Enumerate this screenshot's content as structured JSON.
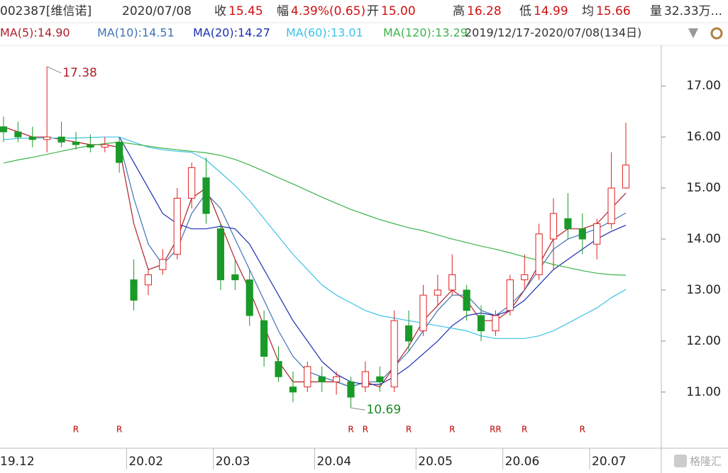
{
  "header": {
    "code": "002387[维信诺]",
    "date": "2020/07/08",
    "fields": [
      {
        "label": "收",
        "value": "15.45"
      },
      {
        "label": "幅",
        "value": "4.39%(0.65)"
      },
      {
        "label": "开",
        "value": "15.00"
      },
      {
        "label": "高",
        "value": "16.28"
      },
      {
        "label": "低",
        "value": "14.99"
      },
      {
        "label": "均",
        "value": "15.66"
      },
      {
        "label": "量",
        "value": "32.33万..."
      }
    ],
    "range": "2019/12/17-2020/07/08(134日)"
  },
  "watermark": "格隆汇",
  "chart_data": {
    "type": "candlestick",
    "categories": [
      "19.12",
      null,
      null,
      null,
      null,
      null,
      null,
      null,
      null,
      "20.02",
      null,
      null,
      null,
      null,
      null,
      "20.03",
      null,
      null,
      null,
      null,
      null,
      null,
      "20.04",
      null,
      null,
      null,
      null,
      null,
      null,
      "20.05",
      null,
      null,
      null,
      null,
      null,
      "20.06",
      null,
      null,
      null,
      null,
      null,
      "20.07",
      null,
      null
    ],
    "open": [
      16.2,
      16.1,
      16.0,
      15.95,
      16.0,
      15.9,
      15.85,
      15.8,
      15.9,
      13.2,
      13.1,
      13.4,
      13.7,
      14.8,
      15.2,
      14.2,
      13.3,
      13.2,
      12.4,
      11.6,
      11.1,
      11.1,
      11.3,
      11.2,
      11.2,
      11.1,
      11.3,
      11.1,
      12.3,
      12.2,
      12.9,
      13.0,
      13.0,
      12.5,
      12.2,
      12.6,
      13.2,
      13.3,
      14.0,
      14.4,
      14.2,
      13.9,
      14.3,
      15.0
    ],
    "high": [
      16.4,
      16.3,
      16.2,
      17.38,
      16.3,
      16.1,
      16.05,
      16.0,
      16.0,
      13.6,
      13.4,
      13.8,
      15.0,
      15.5,
      15.6,
      14.3,
      13.6,
      13.4,
      12.6,
      11.9,
      11.4,
      11.6,
      11.5,
      11.4,
      11.3,
      11.6,
      11.5,
      12.6,
      12.6,
      13.1,
      13.3,
      13.7,
      13.1,
      12.7,
      12.6,
      13.3,
      13.7,
      14.3,
      14.8,
      14.9,
      14.5,
      14.4,
      15.7,
      16.28
    ],
    "low": [
      15.9,
      15.9,
      15.8,
      15.7,
      15.8,
      15.75,
      15.7,
      15.7,
      15.3,
      12.6,
      12.9,
      13.3,
      13.6,
      14.6,
      14.3,
      13.0,
      13.0,
      12.3,
      11.5,
      11.2,
      10.8,
      11.0,
      11.0,
      10.95,
      10.69,
      11.0,
      11.0,
      11.0,
      11.8,
      12.1,
      12.7,
      12.9,
      12.4,
      12.0,
      12.1,
      12.5,
      13.0,
      13.2,
      13.4,
      14.0,
      13.7,
      13.6,
      14.2,
      14.99
    ],
    "close": [
      16.1,
      16.0,
      15.95,
      16.0,
      15.9,
      15.85,
      15.8,
      15.85,
      15.5,
      12.8,
      13.3,
      13.6,
      14.8,
      15.4,
      14.5,
      13.2,
      13.2,
      12.5,
      11.7,
      11.3,
      11.0,
      11.5,
      11.2,
      11.3,
      10.9,
      11.4,
      11.2,
      12.4,
      12.0,
      12.9,
      13.0,
      13.3,
      12.6,
      12.2,
      12.5,
      13.2,
      13.3,
      14.1,
      14.5,
      14.2,
      14.0,
      14.3,
      15.0,
      15.45
    ],
    "up_color": "#e02020",
    "down_color": "#1a9a28",
    "high_label": "17.38",
    "low_label": "10.69",
    "markers": [
      null,
      null,
      null,
      null,
      null,
      "R",
      null,
      null,
      "R",
      null,
      null,
      null,
      null,
      null,
      null,
      null,
      null,
      null,
      null,
      null,
      null,
      null,
      null,
      null,
      "R",
      "R",
      null,
      null,
      "R",
      null,
      null,
      "R",
      null,
      null,
      "RR",
      null,
      "R",
      null,
      null,
      null,
      "R",
      null,
      null,
      null
    ],
    "series": [
      {
        "name": "MA(5):14.90",
        "color": "#b0202a",
        "values": [
          16.2,
          16.1,
          16.0,
          16.0,
          15.95,
          15.9,
          15.85,
          15.85,
          15.8,
          14.3,
          13.4,
          13.5,
          14.0,
          14.8,
          15.0,
          14.3,
          13.6,
          13.0,
          12.3,
          11.6,
          11.2,
          11.2,
          11.2,
          11.2,
          11.1,
          11.2,
          11.1,
          11.5,
          11.9,
          12.4,
          12.7,
          13.0,
          12.8,
          12.4,
          12.4,
          12.6,
          13.0,
          13.5,
          14.0,
          14.2,
          14.2,
          14.3,
          14.6,
          14.9
        ]
      },
      {
        "name": "MA(10):14.51",
        "color": "#3f74b3",
        "values": [
          null,
          null,
          null,
          null,
          null,
          null,
          null,
          null,
          15.9,
          14.8,
          13.9,
          13.5,
          13.8,
          14.5,
          14.9,
          14.6,
          14.0,
          13.4,
          12.8,
          12.2,
          11.7,
          11.4,
          11.3,
          11.2,
          11.1,
          11.2,
          11.2,
          11.5,
          11.8,
          12.2,
          12.6,
          12.9,
          12.9,
          12.6,
          12.5,
          12.7,
          13.0,
          13.4,
          13.8,
          14.0,
          14.1,
          14.2,
          14.35,
          14.51
        ]
      },
      {
        "name": "MA(20):14.27",
        "color": "#1c2fb0",
        "values": [
          null,
          null,
          null,
          null,
          null,
          null,
          null,
          null,
          16.0,
          15.5,
          15.0,
          14.5,
          14.3,
          14.2,
          14.2,
          14.25,
          14.2,
          13.9,
          13.4,
          12.9,
          12.4,
          12.0,
          11.6,
          11.35,
          11.2,
          11.15,
          11.15,
          11.3,
          11.5,
          11.75,
          12.0,
          12.3,
          12.5,
          12.55,
          12.5,
          12.6,
          12.8,
          13.1,
          13.4,
          13.6,
          13.8,
          14.0,
          14.15,
          14.27
        ]
      },
      {
        "name": "MA(60):13.01",
        "color": "#3cc2e6",
        "values": [
          15.95,
          15.97,
          15.98,
          15.98,
          15.98,
          15.98,
          15.99,
          16.0,
          16.0,
          15.9,
          15.8,
          15.75,
          15.72,
          15.7,
          15.55,
          15.3,
          15.05,
          14.75,
          14.4,
          14.05,
          13.7,
          13.4,
          13.1,
          12.9,
          12.75,
          12.6,
          12.5,
          12.45,
          12.4,
          12.35,
          12.3,
          12.25,
          12.2,
          12.1,
          12.05,
          12.05,
          12.05,
          12.1,
          12.2,
          12.35,
          12.5,
          12.65,
          12.85,
          13.01
        ]
      },
      {
        "name": "MA(120):13.29",
        "color": "#3cb44b",
        "values": [
          15.49,
          15.55,
          15.6,
          15.66,
          15.72,
          15.78,
          15.83,
          15.87,
          15.9,
          15.86,
          15.82,
          15.78,
          15.75,
          15.72,
          15.69,
          15.64,
          15.56,
          15.45,
          15.33,
          15.2,
          15.08,
          14.95,
          14.82,
          14.7,
          14.58,
          14.48,
          14.38,
          14.3,
          14.22,
          14.16,
          14.08,
          14.0,
          13.93,
          13.86,
          13.8,
          13.73,
          13.65,
          13.58,
          13.5,
          13.44,
          13.38,
          13.33,
          13.3,
          13.29
        ]
      }
    ],
    "ylim": [
      9.9,
      17.74
    ],
    "yticks": [
      {
        "value": 11,
        "label": "11.00"
      },
      {
        "value": 12,
        "label": "12.00"
      },
      {
        "value": 13,
        "label": "13.00"
      },
      {
        "value": 14,
        "label": "14.00"
      },
      {
        "value": 15,
        "label": "15.00"
      },
      {
        "value": 16,
        "label": "16.00"
      },
      {
        "value": 17,
        "label": "17.00"
      }
    ]
  }
}
